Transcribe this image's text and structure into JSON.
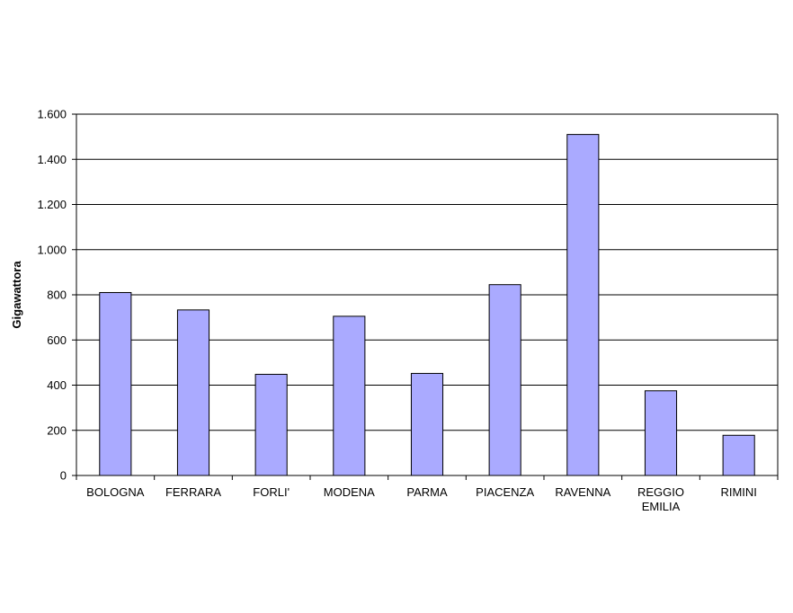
{
  "chart_data": {
    "type": "bar",
    "title": "",
    "xlabel": "",
    "ylabel": "Gigawattora",
    "ylim": [
      0,
      1600
    ],
    "yticks": [
      0,
      200,
      400,
      600,
      800,
      1000,
      1200,
      1400,
      1600
    ],
    "ytick_labels": [
      "0",
      "200",
      "400",
      "600",
      "800",
      "1.000",
      "1.200",
      "1.400",
      "1.600"
    ],
    "grid": true,
    "legend": "none",
    "categories": [
      [
        "BOLOGNA"
      ],
      [
        "FERRARA"
      ],
      [
        "FORLI'"
      ],
      [
        "MODENA"
      ],
      [
        "PARMA"
      ],
      [
        "PIACENZA"
      ],
      [
        "RAVENNA"
      ],
      [
        "REGGIO",
        "EMILIA"
      ],
      [
        "RIMINI"
      ]
    ],
    "values": [
      810,
      733,
      448,
      705,
      452,
      845,
      1510,
      375,
      178
    ],
    "colors": {
      "bar_fill": "#aaaaff",
      "bar_stroke": "#000000",
      "grid": "#000000",
      "axis": "#000000"
    }
  }
}
